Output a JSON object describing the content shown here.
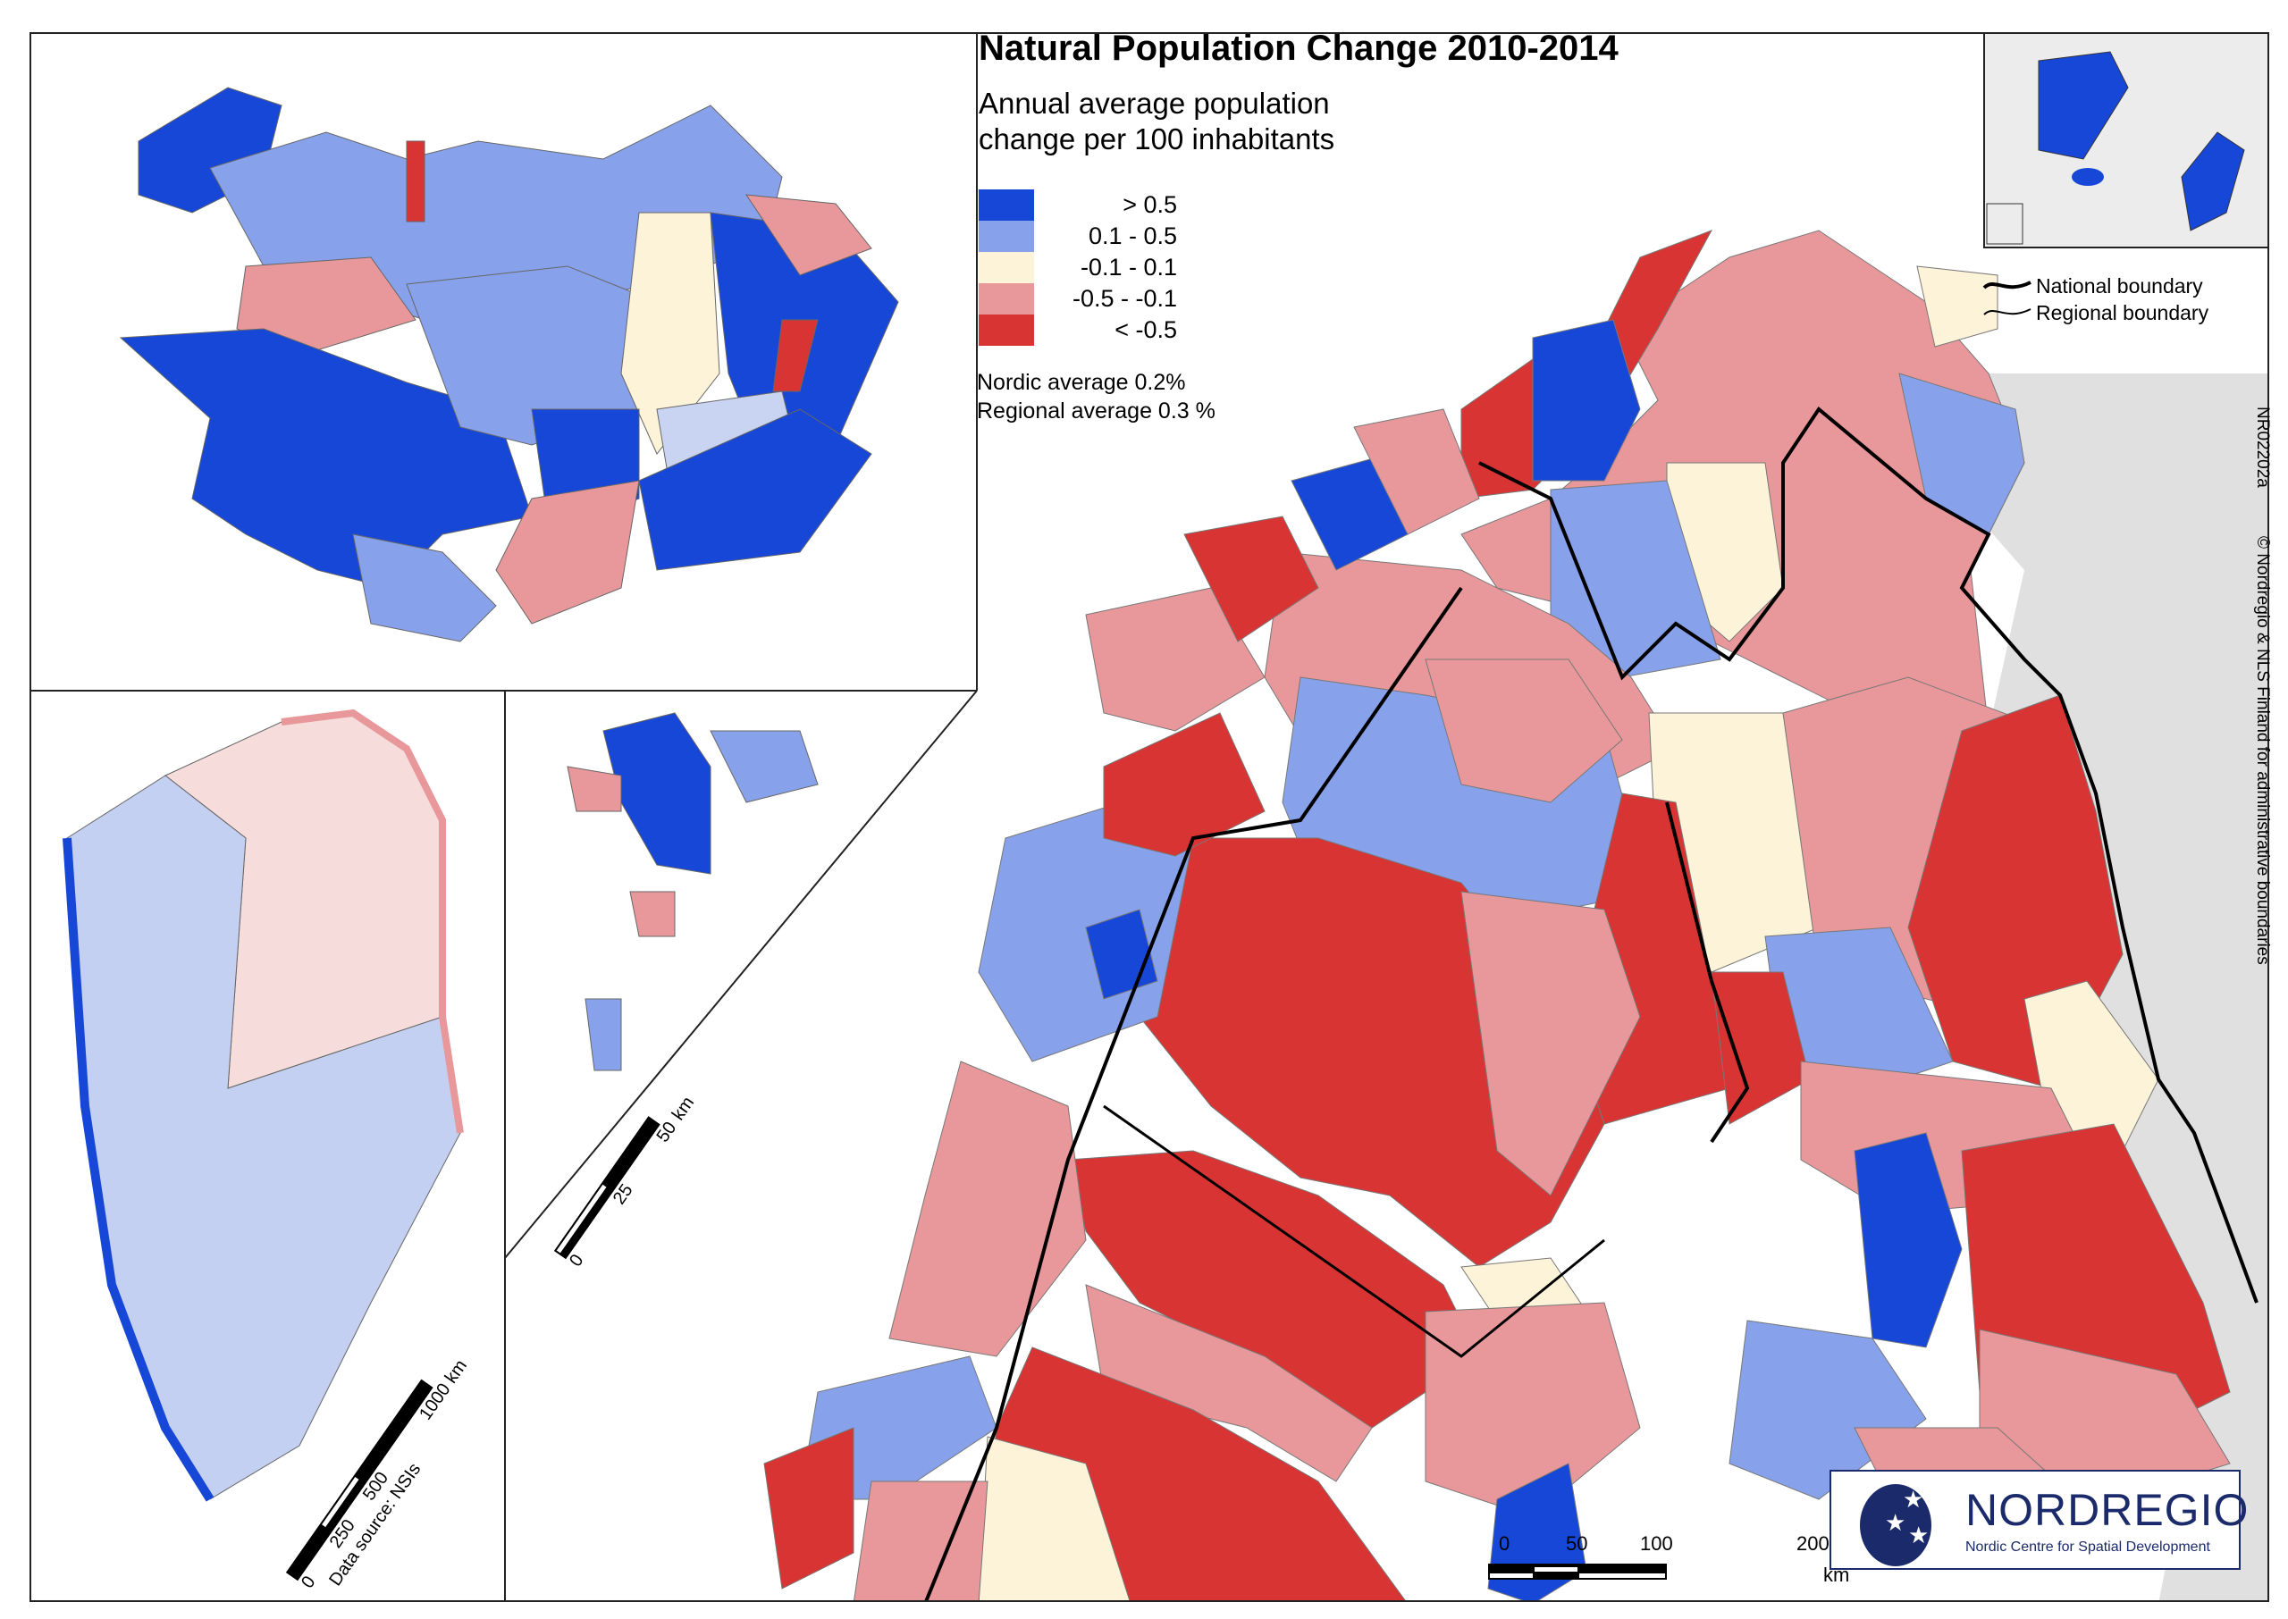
{
  "title": "Natural Population Change 2010-2014",
  "subtitle_line1": "Annual average population",
  "subtitle_line2": "change per 100 inhabitants",
  "legend": [
    {
      "label": "> 0.5",
      "color": "#1747d6"
    },
    {
      "label": "0.1 -  0.5",
      "color": "#87a2ea"
    },
    {
      "label": "-0.1 -  0.1",
      "color": "#fdf3d8"
    },
    {
      "label": "-0.5 - -0.1",
      "color": "#e8989a"
    },
    {
      "label": "< -0.5",
      "color": "#d93434"
    }
  ],
  "nordic_average": "Nordic average 0.2%",
  "regional_average": "Regional average 0.3 %",
  "boundaries": {
    "national": "National boundary",
    "regional": "Regional boundary"
  },
  "map_code": "NR02202a",
  "copyright": "© Nordregio & NLS Finland for administrative boundaries",
  "scale_main": {
    "ticks": [
      "0",
      "50",
      "100",
      "200"
    ],
    "unit": "km"
  },
  "scale_greenland": {
    "ticks": [
      "0",
      "250",
      "500",
      "1000 km"
    ],
    "source": "Data source: NSIs"
  },
  "scale_svalbard": {
    "ticks": [
      "0",
      "25",
      "50",
      "km"
    ]
  },
  "logo": {
    "name": "NORDREGIO",
    "tagline": "Nordic Centre for Spatial Development"
  }
}
